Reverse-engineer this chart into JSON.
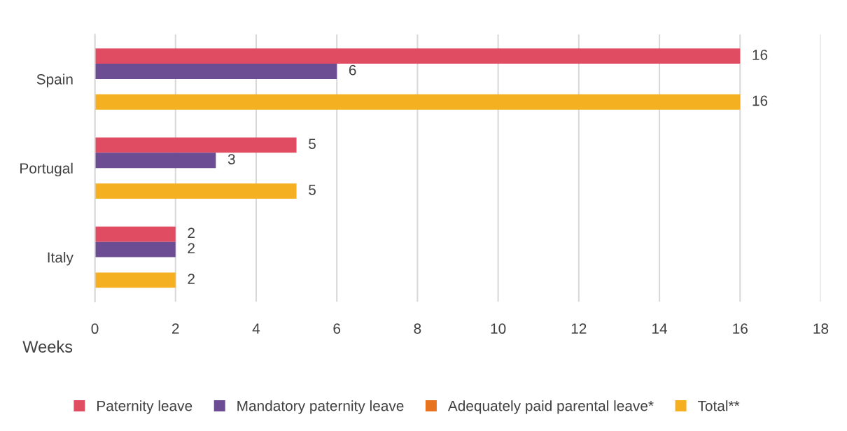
{
  "chart_data": {
    "type": "bar",
    "orientation": "horizontal",
    "categories": [
      "Spain",
      "Portugal",
      "Italy"
    ],
    "series": [
      {
        "name": "Paternity leave",
        "color": "#e04d62",
        "values": [
          16,
          5,
          2
        ]
      },
      {
        "name": "Mandatory paternity leave",
        "color": "#6c4c93",
        "values": [
          6,
          3,
          2
        ]
      },
      {
        "name": "Adequately paid parental leave*",
        "color": "#e8731f",
        "values": [
          null,
          null,
          null
        ]
      },
      {
        "name": "Total**",
        "color": "#f5b022",
        "values": [
          16,
          5,
          2
        ]
      }
    ],
    "xlabel": "Weeks",
    "xlim": [
      0,
      18
    ],
    "xticks": [
      0,
      2,
      4,
      6,
      8,
      10,
      12,
      14,
      16,
      18
    ],
    "grid": "x",
    "legend": "bottom",
    "data_labels": true
  }
}
